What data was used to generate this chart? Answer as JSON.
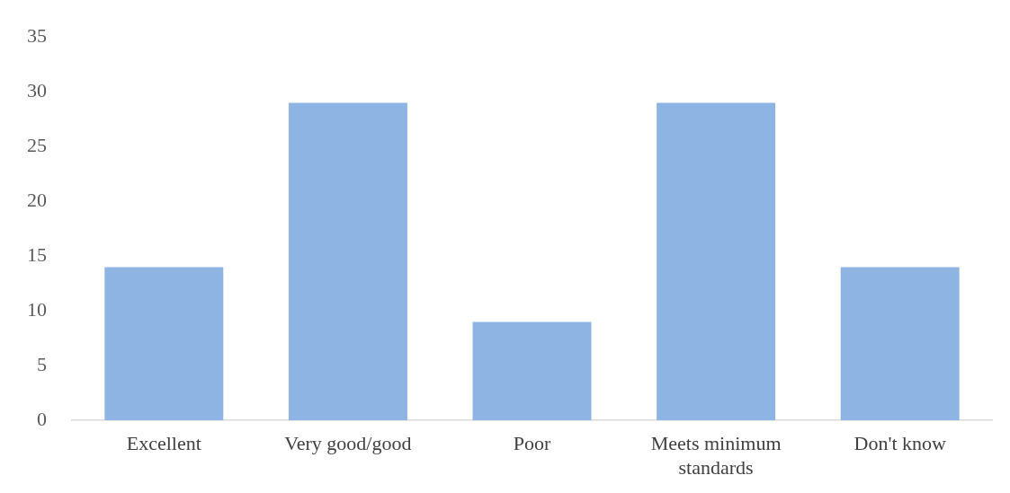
{
  "chart_data": {
    "type": "bar",
    "categories": [
      "Excellent",
      "Very good/good",
      "Poor",
      "Meets minimum standards",
      "Don't know"
    ],
    "values": [
      14,
      29,
      9,
      29,
      14
    ],
    "color": "#8eb4e3",
    "ylim": [
      0,
      35
    ],
    "yticks": [
      0,
      5,
      10,
      15,
      20,
      25,
      30,
      35
    ],
    "grid": false,
    "legend": false
  }
}
